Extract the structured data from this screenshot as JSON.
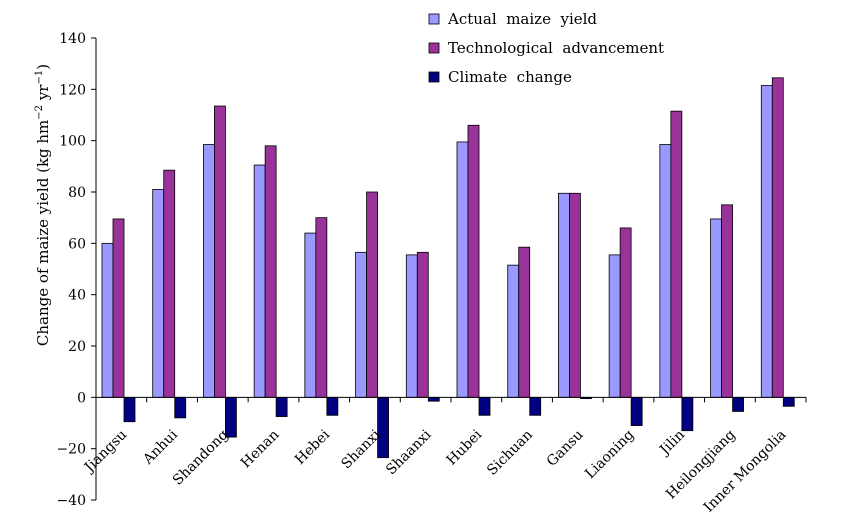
{
  "chart_data": {
    "type": "bar",
    "title": "",
    "xlabel": "",
    "ylabel_main": "Change of maize yield (kg hm",
    "ylabel_sup1": "−2",
    "ylabel_mid": " yr",
    "ylabel_sup2": "−1",
    "ylabel_end": ")",
    "ylim": [
      -40,
      140
    ],
    "yticks": [
      -40,
      -20,
      0,
      20,
      40,
      60,
      80,
      100,
      120,
      140
    ],
    "ytick_labels": [
      "−40",
      "−20",
      "0",
      "20",
      "40",
      "60",
      "80",
      "100",
      "120",
      "140"
    ],
    "grid": false,
    "legend_position": "top-center",
    "categories": [
      "Jiangsu",
      "Anhui",
      "Shandong",
      "Henan",
      "Hebei",
      "Shanxi",
      "Shaanxi",
      "Hubei",
      "Sichuan",
      "Gansu",
      "Liaoning",
      "Jilin",
      "Heilongjiang",
      "Inner Mongolia"
    ],
    "series": [
      {
        "name": "Actual  maize  yield",
        "color": "#9999ff",
        "values": [
          60,
          81,
          98.5,
          90.5,
          64,
          56.5,
          55.5,
          99.5,
          51.5,
          79.5,
          55.5,
          98.5,
          69.5,
          121.5
        ]
      },
      {
        "name": "Technological  advancement",
        "color": "#993399",
        "values": [
          69.5,
          88.5,
          113.5,
          98,
          70,
          80,
          56.5,
          106,
          58.5,
          79.5,
          66,
          111.5,
          75,
          124.5
        ]
      },
      {
        "name": "Climate  change",
        "color": "#000080",
        "values": [
          -9.5,
          -8,
          -15.5,
          -7.5,
          -7,
          -23.5,
          -1.5,
          -7,
          -7,
          -0.5,
          -11,
          -13,
          -5.5,
          -3.5
        ]
      }
    ]
  }
}
